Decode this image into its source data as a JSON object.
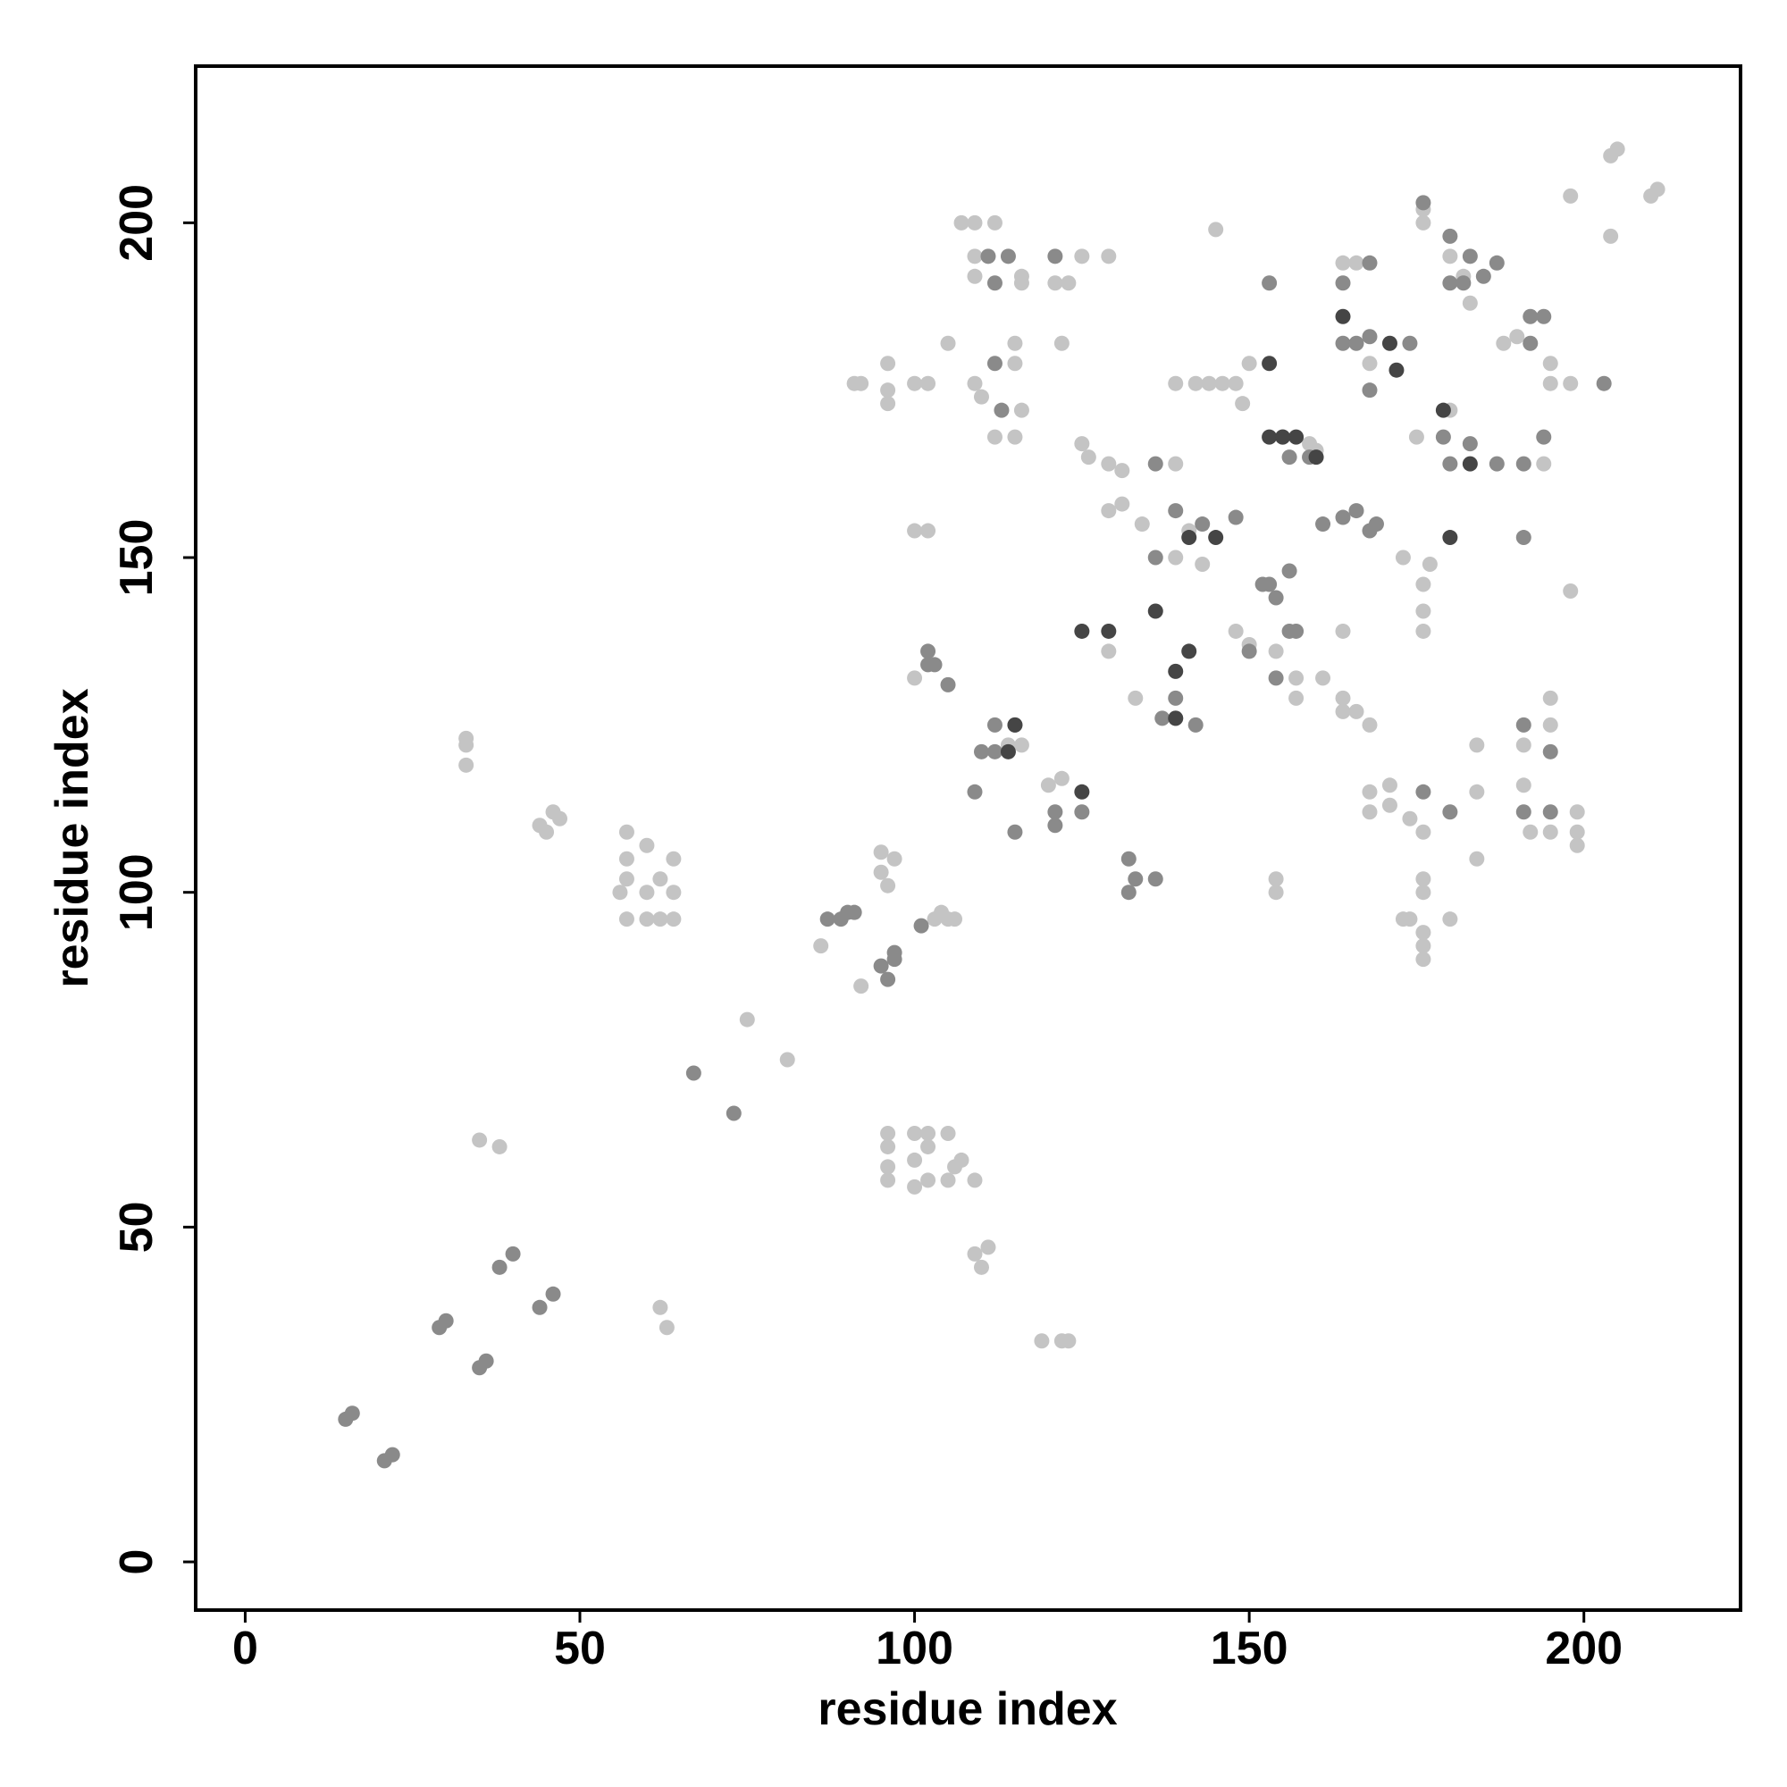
{
  "chart_data": {
    "type": "scatter",
    "x_label": "residue index",
    "y_label": "residue index",
    "xlim": [
      -7.4,
      223.4
    ],
    "ylim": [
      -7.2,
      223.4
    ],
    "xticks": [
      0,
      50,
      100,
      150,
      200
    ],
    "yticks": [
      0,
      50,
      100,
      150,
      200
    ],
    "series": [
      {
        "color": "#c4c4c4",
        "x": [
          33,
          33,
          33,
          35,
          38,
          44,
          46,
          47,
          45,
          57,
          57,
          57,
          56,
          57,
          60,
          60,
          60,
          62,
          64,
          64,
          64,
          62,
          62,
          63,
          75,
          81,
          86,
          92,
          96,
          96,
          96,
          96,
          100,
          100,
          100,
          102,
          102,
          102,
          105,
          105,
          107,
          109,
          106,
          109,
          110,
          111,
          119,
          122,
          123,
          95,
          95,
          96,
          97,
          103,
          105,
          106,
          104,
          100,
          102,
          100,
          91,
          92,
          96,
          96,
          96,
          100,
          102,
          105,
          107,
          109,
          112,
          109,
          109,
          116,
          116,
          121,
          123,
          125,
          129,
          122,
          115,
          115,
          116,
          115,
          112,
          109,
          110,
          114,
          116,
          120,
          122,
          125,
          126,
          129,
          131,
          129,
          131,
          134,
          139,
          139,
          142,
          144,
          146,
          148,
          150,
          149,
          145,
          139,
          143,
          141,
          129,
          133,
          148,
          150,
          154,
          157,
          157,
          161,
          164,
          164,
          166,
          168,
          164,
          154,
          154,
          159,
          160,
          164,
          166,
          168,
          168,
          168,
          171,
          171,
          174,
          176,
          176,
          176,
          174,
          176,
          176,
          176,
          180,
          173,
          175,
          180,
          177,
          176,
          176,
          176,
          173,
          176,
          176,
          180,
          182,
          183,
          184,
          184,
          184,
          188,
          190,
          191,
          191,
          192,
          195,
          195,
          195,
          195,
          195,
          194,
          198,
          198,
          198,
          199,
          199,
          199,
          204,
          204,
          205,
          210,
          211
        ],
        "values": [
          123,
          122,
          119,
          63,
          62,
          110,
          112,
          111,
          109,
          109,
          105,
          102,
          100,
          96,
          107,
          100,
          96,
          102,
          105,
          100,
          96,
          96,
          38,
          35,
          81,
          75,
          92,
          86,
          64,
          62,
          59,
          57,
          64,
          60,
          56,
          64,
          62,
          57,
          64,
          57,
          60,
          57,
          59,
          46,
          44,
          47,
          33,
          33,
          33,
          106,
          103,
          101,
          105,
          96,
          96,
          96,
          97,
          154,
          154,
          132,
          176,
          176,
          175,
          179,
          173,
          176,
          176,
          182,
          200,
          200,
          200,
          195,
          192,
          192,
          191,
          191,
          191,
          195,
          195,
          182,
          182,
          179,
          172,
          168,
          168,
          176,
          174,
          122,
          122,
          116,
          117,
          167,
          165,
          164,
          163,
          157,
          158,
          155,
          164,
          176,
          176,
          176,
          176,
          176,
          179,
          173,
          199,
          150,
          149,
          154,
          136,
          129,
          139,
          137,
          136,
          132,
          129,
          132,
          129,
          127,
          127,
          125,
          139,
          102,
          100,
          167,
          166,
          194,
          194,
          179,
          115,
          112,
          116,
          113,
          111,
          109,
          102,
          100,
          96,
          94,
          92,
          90,
          96,
          96,
          168,
          172,
          149,
          146,
          142,
          139,
          150,
          202,
          200,
          195,
          192,
          188,
          115,
          122,
          105,
          182,
          183,
          122,
          116,
          109,
          109,
          129,
          125,
          179,
          176,
          164,
          176,
          145,
          204,
          112,
          109,
          107,
          198,
          210,
          211,
          204,
          205
        ]
      },
      {
        "color": "#8a8a8a",
        "x": [
          15,
          16,
          20.8,
          22,
          29,
          30,
          35,
          36,
          38,
          40,
          44,
          46,
          67,
          73,
          87,
          89,
          90,
          91,
          96,
          95,
          97,
          97,
          101,
          109,
          110,
          112,
          112,
          115,
          115,
          121,
          121,
          125,
          102,
          102,
          105,
          103,
          132,
          133,
          136,
          132,
          137,
          139,
          139,
          142,
          136,
          139,
          143,
          148,
          136,
          150,
          154,
          156,
          153,
          154,
          156,
          157,
          153,
          155,
          156,
          159,
          161,
          164,
          166,
          168,
          169,
          164,
          166,
          168,
          174,
          164,
          168,
          168,
          176,
          180,
          180,
          182,
          185,
          187,
          183,
          179,
          180,
          183,
          187,
          180,
          176,
          191,
          194,
          191,
          191,
          195,
          195,
          191,
          192,
          194,
          203,
          192,
          111,
          114,
          121,
          112,
          112,
          113,
          152
        ],
        "values": [
          21.3,
          22.2,
          15.1,
          16,
          35,
          36,
          29,
          30,
          44,
          46,
          38,
          40,
          73,
          67,
          96,
          96,
          97,
          97,
          87,
          89,
          91,
          90,
          95,
          115,
          121,
          121,
          125,
          125,
          109,
          110,
          112,
          112,
          136,
          134,
          131,
          134,
          105,
          102,
          102,
          100,
          126,
          126,
          129,
          125,
          164,
          157,
          155,
          156,
          150,
          136,
          132,
          148,
          146,
          144,
          139,
          139,
          191,
          168,
          165,
          165,
          155,
          156,
          157,
          154,
          155,
          182,
          182,
          183,
          182,
          191,
          194,
          175,
          203,
          198,
          191,
          191,
          192,
          194,
          195,
          168,
          164,
          167,
          164,
          112,
          115,
          164,
          168,
          153,
          125,
          121,
          112,
          112,
          186,
          186,
          176,
          182,
          195,
          195,
          195,
          191,
          179,
          172,
          146
        ]
      },
      {
        "color": "#454545",
        "x": [
          136,
          153,
          157,
          164,
          171,
          172,
          180,
          183,
          141,
          145,
          125,
          129,
          139,
          139,
          141,
          179,
          160,
          153,
          155,
          125,
          114,
          115
        ],
        "values": [
          142,
          179,
          168,
          186,
          182,
          178,
          153,
          164,
          153,
          153,
          139,
          139,
          126,
          133,
          136,
          172,
          165,
          168,
          168,
          115,
          121,
          125
        ]
      }
    ]
  }
}
